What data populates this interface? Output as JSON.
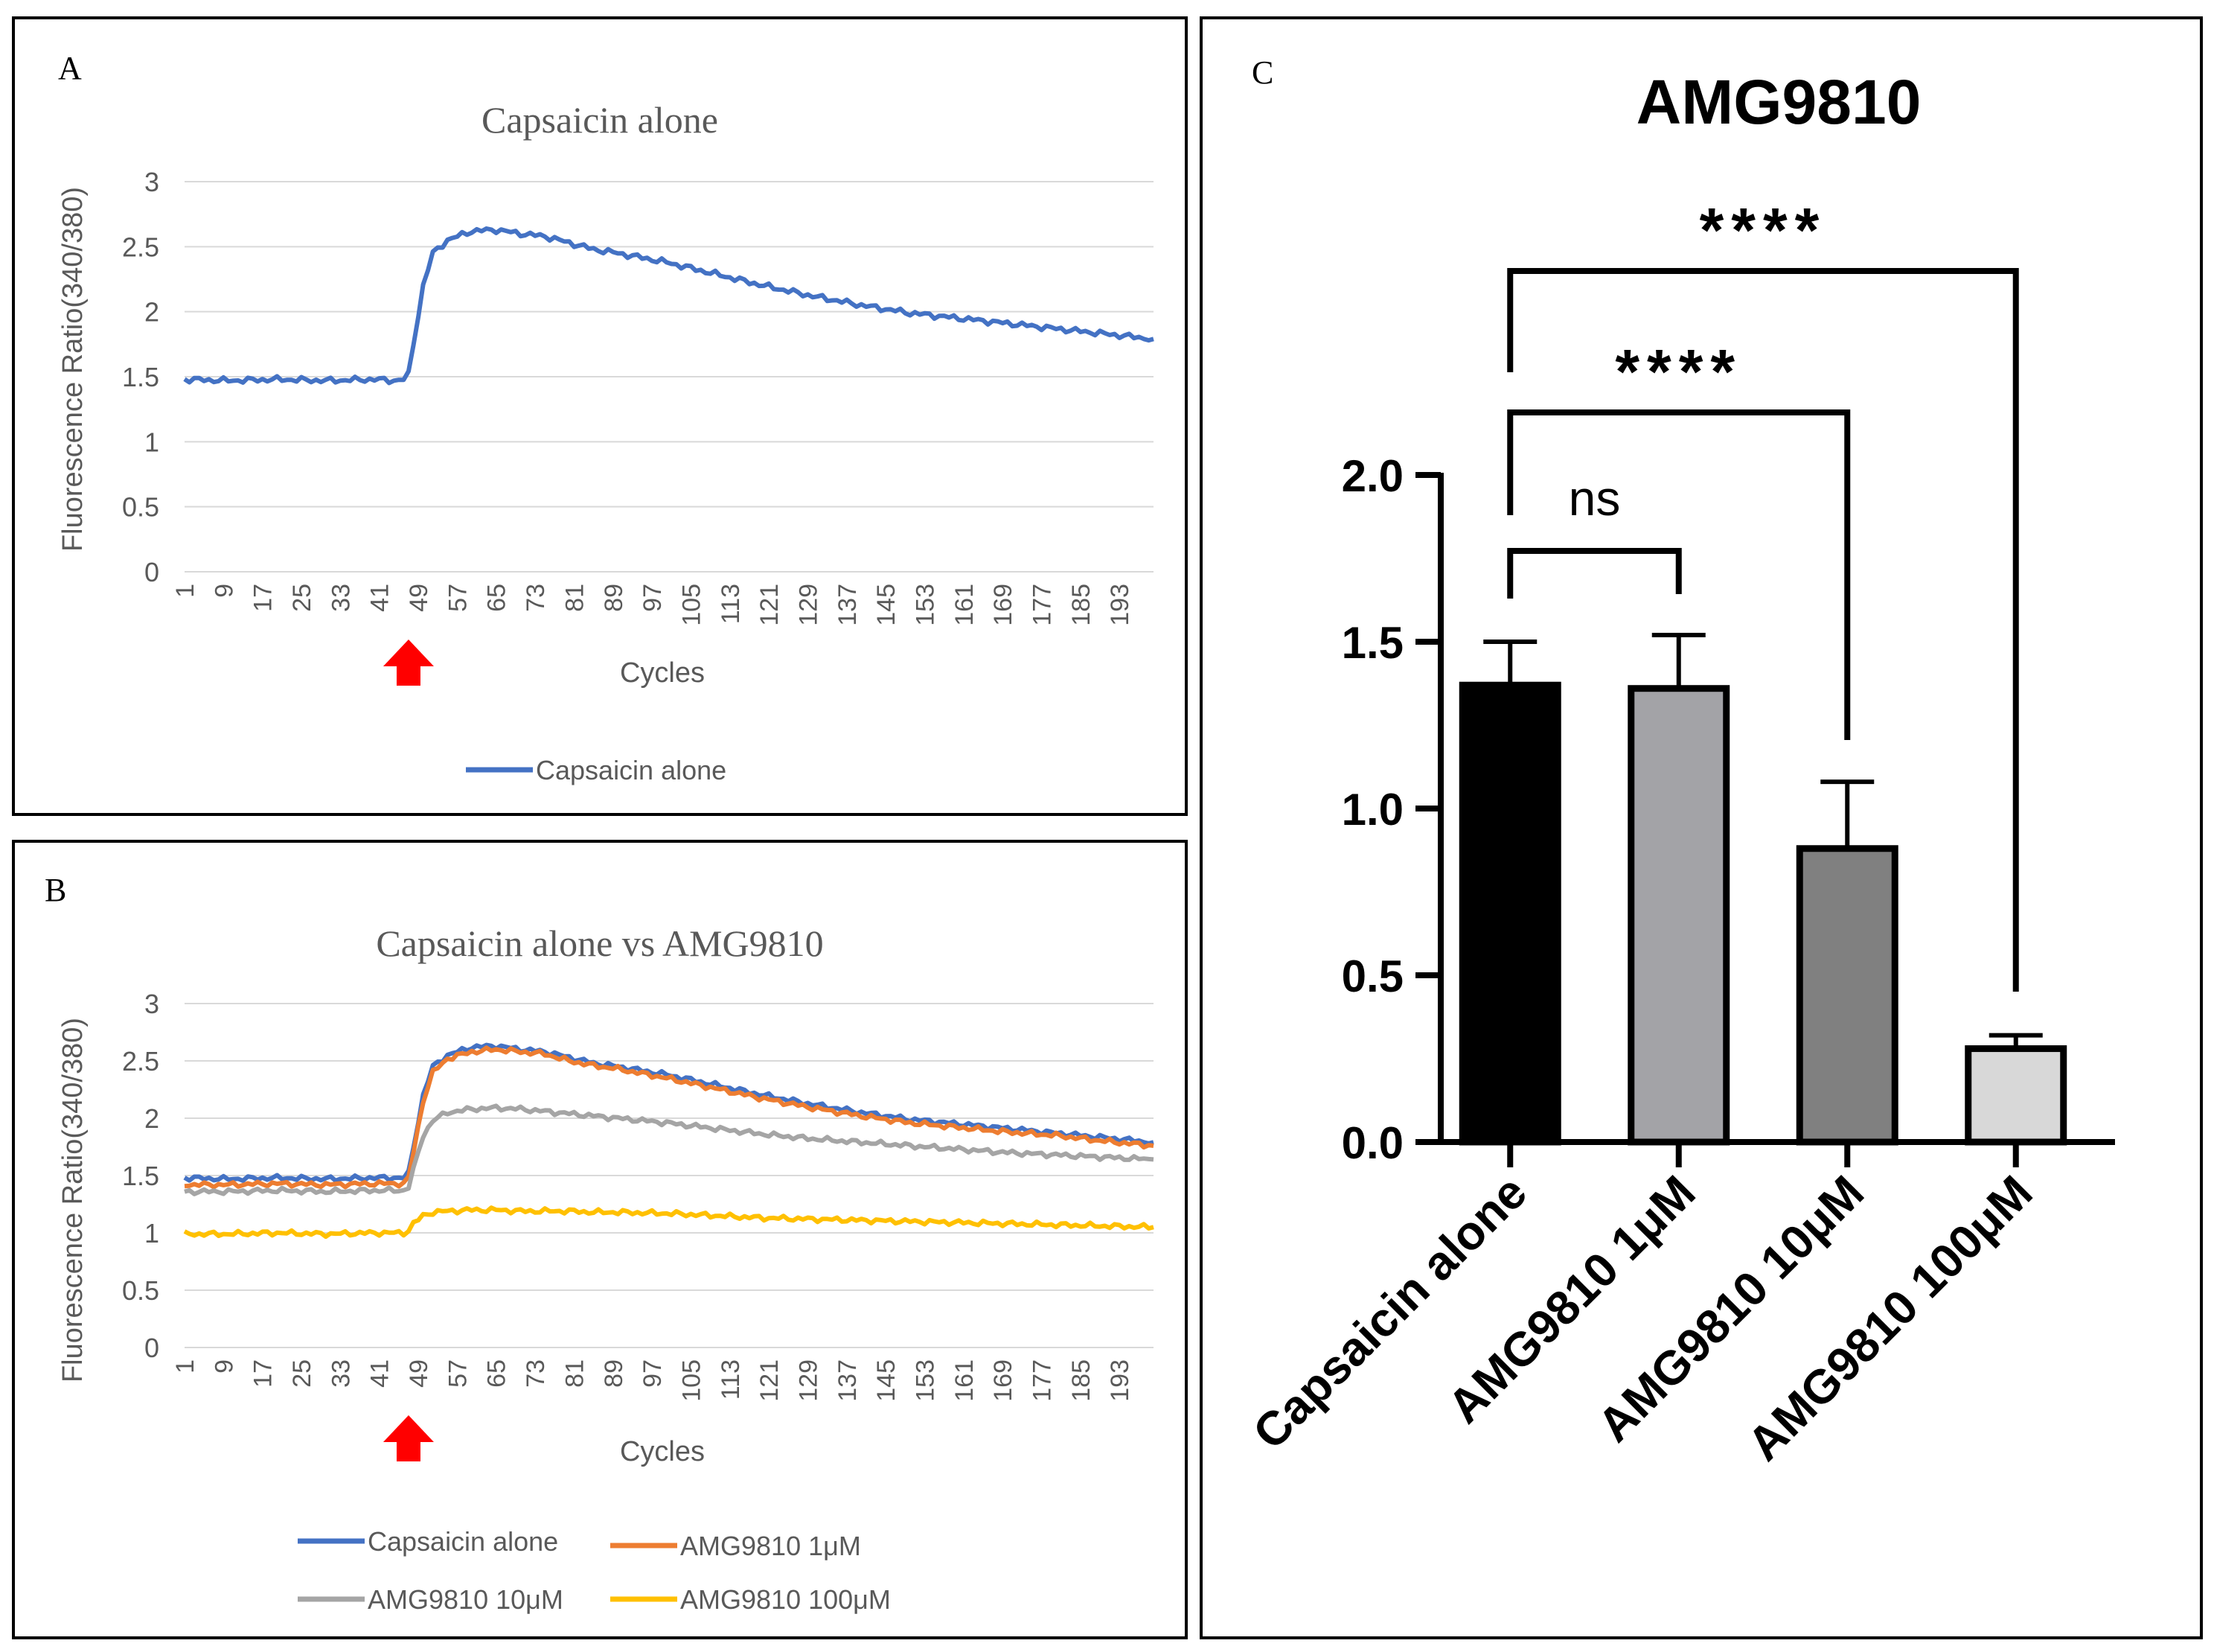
{
  "chart_data": [
    {
      "panel_letter": "A",
      "type": "line",
      "title": "Capsaicin alone",
      "xlabel": "Cycles",
      "ylabel": "Fluorescence Ratio(340/380)",
      "ylim": [
        0,
        3
      ],
      "yticks": [
        "0",
        "0.5",
        "1",
        "1.5",
        "2",
        "2.5",
        "3"
      ],
      "xlim": [
        1,
        200
      ],
      "xticks": [
        "1",
        "9",
        "17",
        "25",
        "33",
        "41",
        "49",
        "57",
        "65",
        "73",
        "81",
        "89",
        "97",
        "105",
        "113",
        "121",
        "129",
        "137",
        "145",
        "153",
        "161",
        "169",
        "177",
        "185",
        "193"
      ],
      "grid": true,
      "legend": "bottom",
      "stimulus_cycle": 47,
      "series": [
        {
          "name": "Capsaicin alone",
          "color": "#4472C4",
          "x": [
            1,
            10,
            20,
            30,
            40,
            44,
            46,
            47,
            48,
            50,
            52,
            55,
            60,
            65,
            70,
            75,
            80,
            85,
            90,
            100,
            110,
            120,
            130,
            140,
            150,
            160,
            170,
            180,
            190,
            200
          ],
          "y": [
            1.48,
            1.47,
            1.48,
            1.47,
            1.48,
            1.47,
            1.48,
            1.52,
            1.75,
            2.2,
            2.45,
            2.55,
            2.62,
            2.63,
            2.6,
            2.58,
            2.53,
            2.48,
            2.45,
            2.38,
            2.29,
            2.2,
            2.12,
            2.05,
            1.99,
            1.95,
            1.91,
            1.87,
            1.83,
            1.79
          ]
        }
      ]
    },
    {
      "panel_letter": "B",
      "type": "line",
      "title": "Capsaicin alone vs AMG9810",
      "xlabel": "Cycles",
      "ylabel": "Fluorescence Ratio(340/380)",
      "ylim": [
        0,
        3
      ],
      "yticks": [
        "0",
        "0.5",
        "1",
        "1.5",
        "2",
        "2.5",
        "3"
      ],
      "xlim": [
        1,
        200
      ],
      "xticks": [
        "1",
        "9",
        "17",
        "25",
        "33",
        "41",
        "49",
        "57",
        "65",
        "73",
        "81",
        "89",
        "97",
        "105",
        "113",
        "121",
        "129",
        "137",
        "145",
        "153",
        "161",
        "169",
        "177",
        "185",
        "193"
      ],
      "grid": true,
      "legend": "bottom",
      "stimulus_cycle": 47,
      "series": [
        {
          "name": "Capsaicin alone",
          "color": "#4472C4",
          "x": [
            1,
            10,
            20,
            30,
            40,
            46,
            47,
            48,
            50,
            52,
            55,
            60,
            65,
            70,
            75,
            80,
            85,
            90,
            100,
            110,
            120,
            130,
            140,
            150,
            160,
            170,
            180,
            190,
            200
          ],
          "y": [
            1.48,
            1.47,
            1.48,
            1.47,
            1.48,
            1.48,
            1.52,
            1.75,
            2.2,
            2.45,
            2.55,
            2.62,
            2.63,
            2.6,
            2.58,
            2.53,
            2.48,
            2.45,
            2.38,
            2.29,
            2.2,
            2.12,
            2.05,
            1.99,
            1.95,
            1.91,
            1.87,
            1.83,
            1.79
          ]
        },
        {
          "name": "AMG9810 1μM",
          "color": "#ED7D31",
          "x": [
            1,
            10,
            20,
            30,
            40,
            46,
            47,
            48,
            50,
            52,
            55,
            60,
            65,
            70,
            75,
            80,
            85,
            90,
            100,
            110,
            120,
            130,
            140,
            150,
            160,
            170,
            180,
            190,
            200
          ],
          "y": [
            1.42,
            1.42,
            1.43,
            1.42,
            1.43,
            1.43,
            1.48,
            1.7,
            2.15,
            2.4,
            2.52,
            2.58,
            2.6,
            2.58,
            2.56,
            2.5,
            2.46,
            2.43,
            2.35,
            2.26,
            2.17,
            2.09,
            2.02,
            1.96,
            1.92,
            1.88,
            1.85,
            1.8,
            1.76
          ]
        },
        {
          "name": "AMG9810 10μM",
          "color": "#A5A5A5",
          "x": [
            1,
            10,
            20,
            30,
            40,
            46,
            47,
            48,
            50,
            52,
            55,
            60,
            65,
            70,
            75,
            80,
            85,
            90,
            100,
            110,
            120,
            130,
            140,
            150,
            160,
            170,
            180,
            190,
            200
          ],
          "y": [
            1.36,
            1.36,
            1.37,
            1.36,
            1.37,
            1.37,
            1.4,
            1.55,
            1.85,
            1.98,
            2.05,
            2.08,
            2.09,
            2.08,
            2.06,
            2.04,
            2.02,
            2.0,
            1.96,
            1.91,
            1.86,
            1.82,
            1.79,
            1.76,
            1.73,
            1.7,
            1.68,
            1.66,
            1.64
          ]
        },
        {
          "name": "AMG9810 100μM",
          "color": "#FFC000",
          "x": [
            1,
            10,
            20,
            30,
            40,
            46,
            47,
            48,
            50,
            52,
            55,
            60,
            65,
            70,
            75,
            80,
            85,
            90,
            100,
            110,
            120,
            130,
            140,
            150,
            160,
            170,
            180,
            190,
            200
          ],
          "y": [
            0.99,
            0.99,
            1.0,
            0.99,
            1.0,
            1.0,
            1.02,
            1.08,
            1.15,
            1.18,
            1.19,
            1.2,
            1.2,
            1.19,
            1.19,
            1.19,
            1.18,
            1.18,
            1.17,
            1.15,
            1.13,
            1.12,
            1.11,
            1.1,
            1.09,
            1.08,
            1.07,
            1.06,
            1.05
          ]
        }
      ]
    },
    {
      "panel_letter": "C",
      "type": "bar",
      "title": "AMG9810",
      "ylim": [
        0,
        2.0
      ],
      "yticks": [
        "0.0",
        "0.5",
        "1.0",
        "1.5",
        "2.0"
      ],
      "categories": [
        "Capsaicin alone",
        "AMG9810 1μM",
        "AMG9810 10μM",
        "AMG9810 100μM"
      ],
      "values": [
        1.37,
        1.36,
        0.88,
        0.28
      ],
      "errors": [
        0.13,
        0.16,
        0.2,
        0.04
      ],
      "bar_colors": [
        "#000000",
        "#A3A3A7",
        "#808080",
        "#D8D8D8"
      ],
      "significance": [
        {
          "from": 0,
          "to": 1,
          "label": "ns"
        },
        {
          "from": 0,
          "to": 2,
          "label": "****"
        },
        {
          "from": 0,
          "to": 3,
          "label": "****"
        }
      ]
    }
  ]
}
